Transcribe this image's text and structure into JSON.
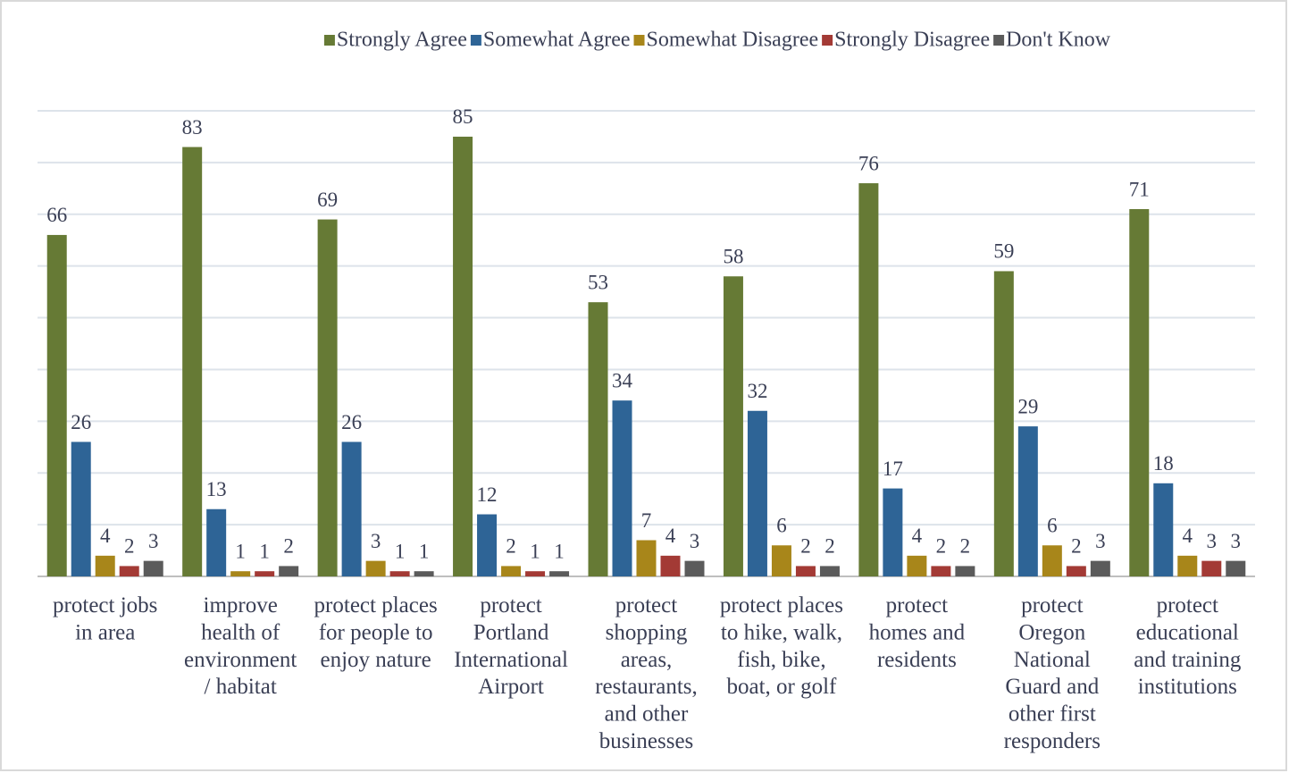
{
  "chart_data": {
    "type": "bar",
    "categories": [
      "protect jobs\nin area",
      "improve\nhealth of\nenvironment\n/ habitat",
      "protect places\nfor people to\nenjoy nature",
      "protect\nPortland\nInternational\nAirport",
      "protect\nshopping\nareas,\nrestaurants,\nand other\nbusinesses",
      "protect places\nto hike, walk,\nfish, bike,\nboat, or golf",
      "protect\nhomes and\nresidents",
      "protect\nOregon\nNational\nGuard and\nother first\nresponders",
      "protect\neducational\nand training\ninstitutions"
    ],
    "series": [
      {
        "name": "Strongly Agree",
        "color": "#667a35",
        "values": [
          66,
          83,
          69,
          85,
          53,
          58,
          76,
          59,
          71
        ]
      },
      {
        "name": "Somewhat Agree",
        "color": "#2e6496",
        "values": [
          26,
          13,
          26,
          12,
          34,
          32,
          17,
          29,
          18
        ]
      },
      {
        "name": "Somewhat Disagree",
        "color": "#a8861a",
        "values": [
          4,
          1,
          3,
          2,
          7,
          6,
          4,
          6,
          4
        ]
      },
      {
        "name": "Strongly Disagree",
        "color": "#a33a35",
        "values": [
          2,
          1,
          1,
          1,
          4,
          2,
          2,
          2,
          3
        ]
      },
      {
        "name": "Don't Know",
        "color": "#5b5b5b",
        "values": [
          3,
          2,
          1,
          1,
          3,
          2,
          2,
          3,
          3
        ]
      }
    ],
    "ylim": [
      0,
      90
    ],
    "yticks": [
      0,
      10,
      20,
      30,
      40,
      50,
      60,
      70,
      80,
      90
    ],
    "grid": true,
    "legend": "top"
  }
}
